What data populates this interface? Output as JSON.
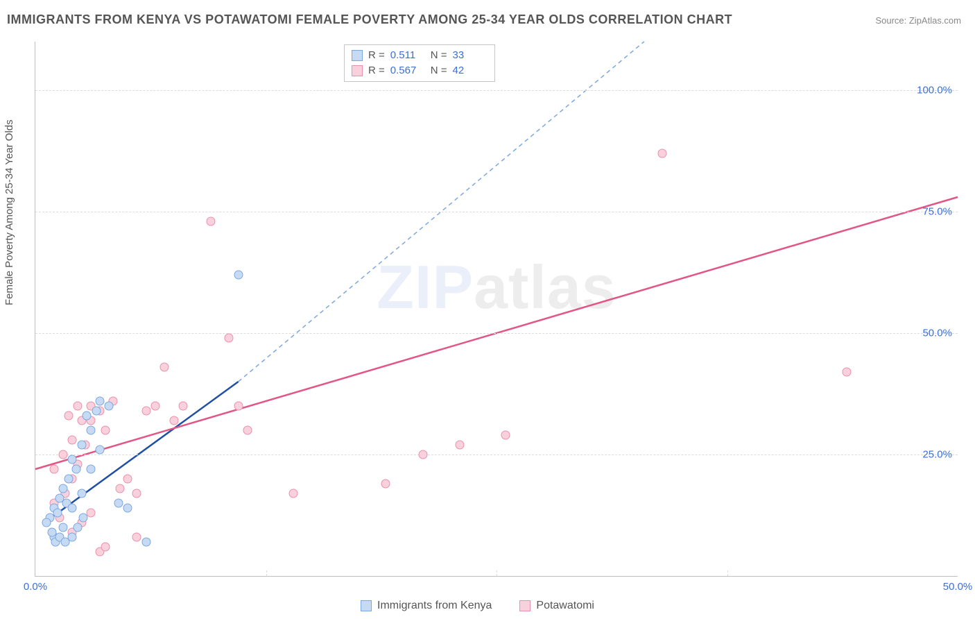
{
  "title": "IMMIGRANTS FROM KENYA VS POTAWATOMI FEMALE POVERTY AMONG 25-34 YEAR OLDS CORRELATION CHART",
  "source_prefix": "Source: ",
  "source_link": "ZipAtlas.com",
  "ylabel": "Female Poverty Among 25-34 Year Olds",
  "watermark_a": "ZIP",
  "watermark_b": "atlas",
  "chart": {
    "type": "scatter",
    "background_color": "#ffffff",
    "grid_color": "#dcdcdc",
    "axis_color": "#bfbfbf",
    "label_color": "#555555",
    "tick_color": "#3b6fd6",
    "title_fontsize": 18,
    "label_fontsize": 15,
    "tick_fontsize": 15,
    "marker_size": 13,
    "xlim": [
      0,
      50
    ],
    "ylim": [
      0,
      110
    ],
    "xtick_positions": [
      0,
      50
    ],
    "xtick_labels": [
      "0.0%",
      "50.0%"
    ],
    "ytick_positions": [
      25,
      50,
      75,
      100
    ],
    "ytick_labels": [
      "25.0%",
      "50.0%",
      "75.0%",
      "100.0%"
    ],
    "series": [
      {
        "name": "Immigrants from Kenya",
        "fill": "#c7daf4",
        "stroke": "#7aa7e0",
        "line_color": "#1f4ea8",
        "dashed_color": "#7aa7e0",
        "R": "0.511",
        "N": "33",
        "solid_line": {
          "x1": 0.5,
          "y1": 11,
          "x2": 11,
          "y2": 40
        },
        "dashed_line": {
          "x1": 11,
          "y1": 40,
          "x2": 33,
          "y2": 110
        },
        "points": [
          [
            0.8,
            12
          ],
          [
            1.0,
            14
          ],
          [
            1.2,
            13
          ],
          [
            1.3,
            16
          ],
          [
            1.5,
            18
          ],
          [
            1.7,
            15
          ],
          [
            1.8,
            20
          ],
          [
            2.0,
            24
          ],
          [
            2.2,
            22
          ],
          [
            2.5,
            27
          ],
          [
            2.8,
            33
          ],
          [
            3.0,
            30
          ],
          [
            3.3,
            34
          ],
          [
            3.5,
            36
          ],
          [
            1.0,
            8
          ],
          [
            1.5,
            10
          ],
          [
            2.0,
            14
          ],
          [
            2.5,
            17
          ],
          [
            3.0,
            22
          ],
          [
            3.5,
            26
          ],
          [
            0.6,
            11
          ],
          [
            0.9,
            9
          ],
          [
            1.1,
            7
          ],
          [
            1.3,
            8
          ],
          [
            1.6,
            7
          ],
          [
            2.0,
            8
          ],
          [
            2.3,
            10
          ],
          [
            2.6,
            12
          ],
          [
            4.5,
            15
          ],
          [
            5.0,
            14
          ],
          [
            6.0,
            7
          ],
          [
            11.0,
            62
          ],
          [
            4.0,
            35
          ]
        ]
      },
      {
        "name": "Potawatomi",
        "fill": "#f8d1dc",
        "stroke": "#eb8fab",
        "line_color": "#e25584",
        "R": "0.567",
        "N": "42",
        "solid_line": {
          "x1": 0,
          "y1": 22,
          "x2": 50,
          "y2": 78
        },
        "points": [
          [
            1.0,
            15
          ],
          [
            1.3,
            12
          ],
          [
            1.6,
            17
          ],
          [
            2.0,
            20
          ],
          [
            2.3,
            23
          ],
          [
            2.7,
            27
          ],
          [
            3.0,
            32
          ],
          [
            3.5,
            34
          ],
          [
            3.8,
            30
          ],
          [
            4.2,
            36
          ],
          [
            4.6,
            18
          ],
          [
            5.0,
            20
          ],
          [
            5.5,
            17
          ],
          [
            6.0,
            34
          ],
          [
            6.5,
            35
          ],
          [
            7.0,
            43
          ],
          [
            7.5,
            32
          ],
          [
            8.0,
            35
          ],
          [
            9.5,
            73
          ],
          [
            10.5,
            49
          ],
          [
            11.0,
            35
          ],
          [
            11.5,
            30
          ],
          [
            14.0,
            17
          ],
          [
            19.0,
            19
          ],
          [
            21.0,
            25
          ],
          [
            23.0,
            27
          ],
          [
            25.5,
            29
          ],
          [
            34.0,
            87
          ],
          [
            44.0,
            42
          ],
          [
            2.0,
            9
          ],
          [
            2.5,
            11
          ],
          [
            3.0,
            13
          ],
          [
            3.5,
            5
          ],
          [
            1.0,
            22
          ],
          [
            1.5,
            25
          ],
          [
            2.0,
            28
          ],
          [
            2.5,
            32
          ],
          [
            3.0,
            35
          ],
          [
            1.8,
            33
          ],
          [
            2.3,
            35
          ],
          [
            3.8,
            6
          ],
          [
            5.5,
            8
          ]
        ]
      }
    ],
    "bottom_legend": [
      {
        "swatch_fill": "#c7daf4",
        "swatch_stroke": "#7aa7e0",
        "label": "Immigrants from Kenya"
      },
      {
        "swatch_fill": "#f8d1dc",
        "swatch_stroke": "#eb8fab",
        "label": "Potawatomi"
      }
    ],
    "stats_labels": {
      "R": "R  =",
      "N": "N  ="
    }
  }
}
